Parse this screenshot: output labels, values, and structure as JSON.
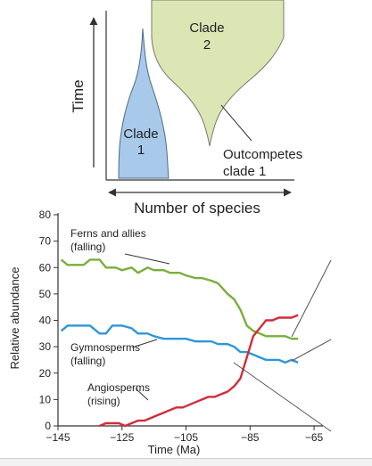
{
  "colors": {
    "clade1": "#a9c9ea",
    "clade2": "#dbe6b4",
    "ferns": "#7aae3b",
    "gymno": "#2f96d8",
    "angio": "#d22c3a",
    "axis": "#333333"
  },
  "diagram": {
    "y_axis_label": "Time",
    "x_axis_label": "Number of species",
    "clade1_label": [
      "Clade",
      "1"
    ],
    "clade2_label": [
      "Clade",
      "2"
    ],
    "annotation": [
      "Outcompetes",
      "clade 1"
    ]
  },
  "chart_data": {
    "type": "line",
    "xlabel": "Time (Ma)",
    "ylabel": "Relative abundance",
    "xlim": [
      -145,
      -60
    ],
    "ylim": [
      0,
      80
    ],
    "x_ticks": [
      "−145",
      "−125",
      "−105",
      "−85",
      "−65"
    ],
    "x_tick_values": [
      -145,
      -125,
      -105,
      -85,
      -65
    ],
    "y_ticks": [
      "0",
      "10",
      "20",
      "30",
      "40",
      "50",
      "60",
      "70",
      "80"
    ],
    "y_tick_values": [
      0,
      10,
      20,
      30,
      40,
      50,
      60,
      70,
      80
    ],
    "series": [
      {
        "key": "ferns",
        "label_lines": [
          "Ferns and allies",
          "(falling)"
        ],
        "x": [
          -144,
          -142,
          -140,
          -137,
          -135,
          -132,
          -130,
          -127,
          -125,
          -122,
          -120,
          -117,
          -115,
          -112,
          -110,
          -107,
          -105,
          -102,
          -100,
          -97,
          -95,
          -92,
          -90,
          -88,
          -86,
          -84,
          -82,
          -80,
          -78,
          -76,
          -74,
          -72,
          -70
        ],
        "y": [
          63,
          61,
          61,
          61,
          63,
          63,
          60,
          60,
          59,
          60,
          58,
          60,
          59,
          59,
          58,
          58,
          57,
          56,
          56,
          55,
          54,
          50,
          48,
          44,
          38,
          36,
          35,
          34,
          34,
          34,
          34,
          33,
          33
        ]
      },
      {
        "key": "gymno",
        "label_lines": [
          "Gymnosperms",
          "(falling)"
        ],
        "x": [
          -144,
          -142,
          -140,
          -137,
          -135,
          -132,
          -130,
          -128,
          -125,
          -122,
          -120,
          -117,
          -115,
          -112,
          -110,
          -107,
          -105,
          -102,
          -100,
          -97,
          -95,
          -92,
          -90,
          -88,
          -86,
          -84,
          -82,
          -80,
          -78,
          -76,
          -74,
          -72,
          -70
        ],
        "y": [
          36,
          38,
          38,
          38,
          38,
          35,
          35,
          38,
          38,
          37,
          35,
          35,
          34,
          33,
          33,
          33,
          33,
          32,
          32,
          32,
          31,
          31,
          30,
          28,
          28,
          27,
          26,
          25,
          25,
          25,
          24,
          25,
          24
        ]
      },
      {
        "key": "angio",
        "label_lines": [
          "Angiosperms",
          "(rising)"
        ],
        "x": [
          -132,
          -130,
          -128,
          -126,
          -124,
          -122,
          -120,
          -118,
          -116,
          -114,
          -112,
          -110,
          -108,
          -106,
          -104,
          -102,
          -100,
          -98,
          -96,
          -94,
          -92,
          -90,
          -88,
          -86,
          -84,
          -82,
          -80,
          -78,
          -76,
          -74,
          -72,
          -70
        ],
        "y": [
          0,
          1,
          1,
          1,
          0,
          1,
          2,
          2,
          3,
          4,
          5,
          6,
          7,
          7,
          8,
          9,
          10,
          11,
          11,
          12,
          13,
          15,
          18,
          26,
          34,
          37,
          40,
          40,
          41,
          41,
          41,
          42
        ]
      }
    ]
  }
}
